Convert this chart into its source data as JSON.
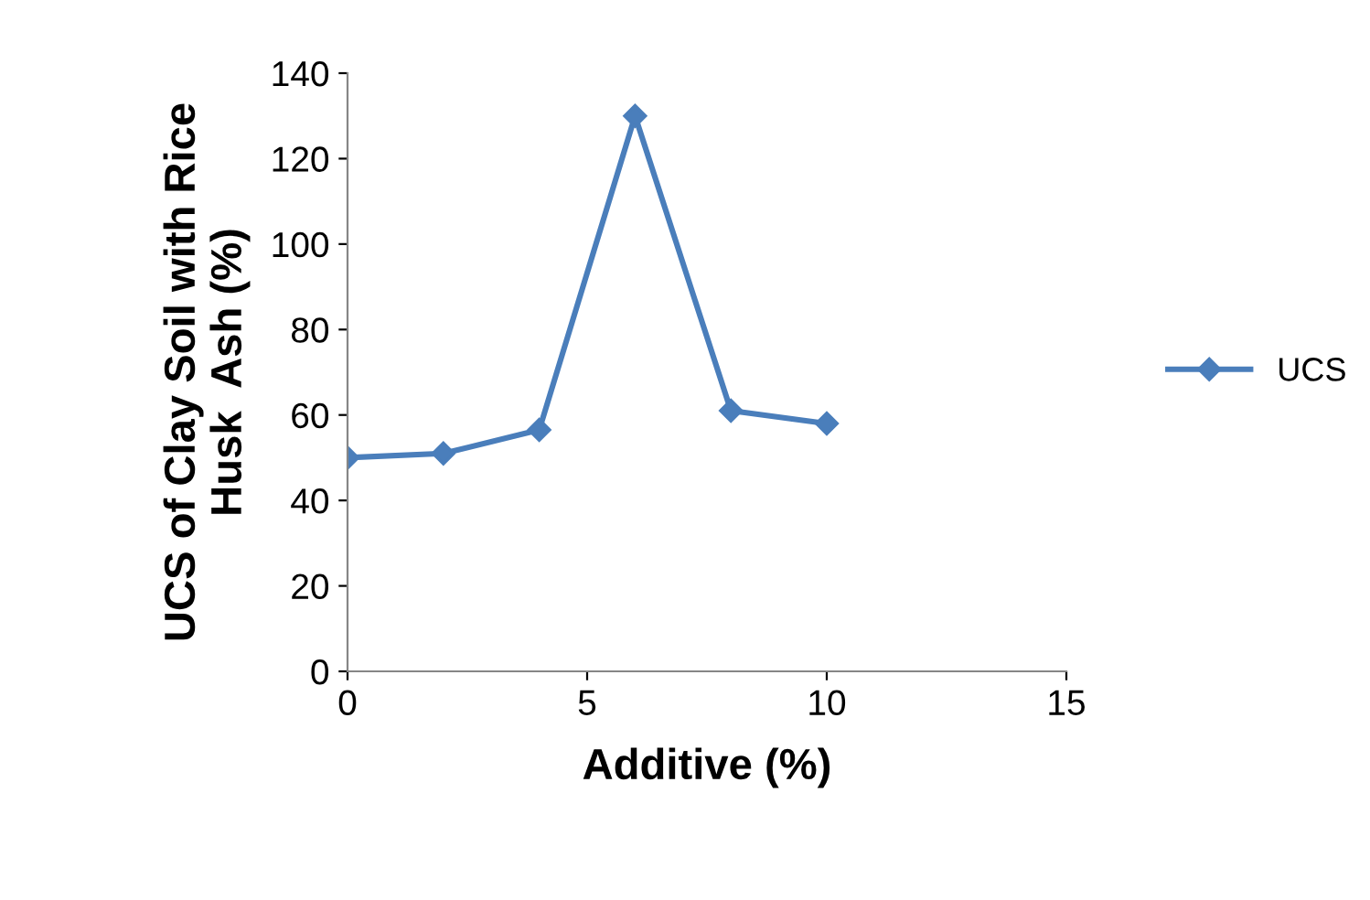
{
  "chart_data": {
    "type": "line",
    "xlabel": "Additive (%)",
    "ylabel": "UCS of Clay Soil with Rice\nHusk  Ash (%)",
    "x": [
      0,
      2,
      4,
      6,
      8,
      10
    ],
    "series": [
      {
        "name": "UCS",
        "color": "#4a7ebb",
        "values": [
          50,
          51,
          56.5,
          130,
          61,
          58
        ]
      }
    ],
    "xlim": [
      0,
      15
    ],
    "xticks": [
      0,
      5,
      10,
      15
    ],
    "ylim": [
      0,
      140
    ],
    "yticks": [
      0,
      20,
      40,
      60,
      80,
      100,
      120,
      140
    ],
    "grid": false,
    "legend": "right",
    "marker": "diamond",
    "line_style": "solid"
  }
}
